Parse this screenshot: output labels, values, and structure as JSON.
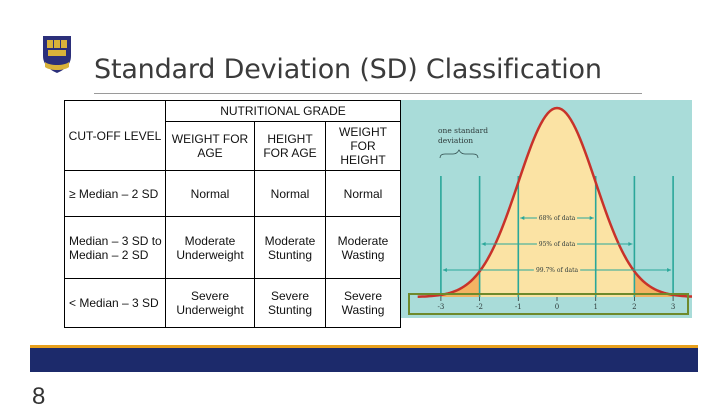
{
  "slide": {
    "title": "Standard Deviation (SD) Classification",
    "page_number": "8"
  },
  "table": {
    "cutoff_header": "CUT-OFF LEVEL",
    "group_header": "NUTRITIONAL GRADE",
    "columns": [
      "WEIGHT FOR AGE",
      "HEIGHT FOR AGE",
      "WEIGHT FOR HEIGHT"
    ],
    "rows": [
      {
        "level": "≥ Median – 2 SD",
        "cells": [
          "Normal",
          "Normal",
          "Normal"
        ]
      },
      {
        "level": "Median – 3 SD to Median – 2 SD",
        "cells": [
          "Moderate Underweight",
          "Moderate Stunting",
          "Moderate Wasting"
        ]
      },
      {
        "level": "< Median – 3 SD",
        "cells": [
          "Severe Underweight",
          "Severe Stunting",
          "Severe Wasting"
        ]
      }
    ]
  },
  "figure": {
    "bracket_label_1": "one standard",
    "bracket_label_2": "deviation",
    "ranges": [
      "68% of data",
      "95% of data",
      "99.7% of data"
    ],
    "ticks": [
      "-3",
      "-2",
      "-1",
      "0",
      "1",
      "2",
      "3"
    ],
    "colors": {
      "background": "#a9dcd9",
      "curve": "#c8322a",
      "fill_center": "#fbe3a4",
      "fill_tail": "#f3b363",
      "lines": "#2aa79a",
      "axis_border": "#6e8a2c"
    }
  },
  "colors": {
    "gold_band": "#e8a01c",
    "navy_band": "#1c2a6b",
    "title": "#3b3b3b"
  }
}
